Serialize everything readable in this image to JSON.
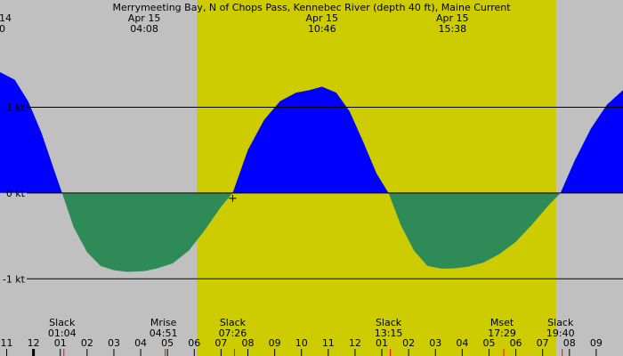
{
  "title": "Merrymeeting Bay, N of Chops Pass, Kennebec River (depth 40 ft), Maine Current",
  "top_left": {
    "date": "14",
    "time": "0"
  },
  "top_events": [
    {
      "date": "Apr 15",
      "time": "04:08",
      "hour": 28.133
    },
    {
      "date": "Apr 15",
      "time": "10:46",
      "hour": 34.767
    },
    {
      "date": "Apr 15",
      "time": "15:38",
      "hour": 39.633
    }
  ],
  "bottom_events": [
    {
      "label": "Slack",
      "time": "01:04",
      "hour": 25.067
    },
    {
      "label": "Mrise",
      "time": "04:51",
      "hour": 28.85
    },
    {
      "label": "Slack",
      "time": "07:26",
      "hour": 31.433
    },
    {
      "label": "Slack",
      "time": "13:15",
      "hour": 37.25
    },
    {
      "label": "Mset",
      "time": "17:29",
      "hour": 41.483
    },
    {
      "label": "Slack",
      "time": "19:40",
      "hour": 43.667
    }
  ],
  "colors": {
    "background": "#c0c0c0",
    "daylight": "#cccc00",
    "flood": "#0000ff",
    "ebb": "#2e8b57",
    "line": "#000000",
    "marker_red": "#ff0000"
  },
  "chart_data": {
    "type": "area",
    "title": "Merrymeeting Bay, N of Chops Pass, Kennebec River (depth 40 ft), Maine Current",
    "xlabel": "",
    "ylabel": "",
    "x_unit": "hour (Apr 14 11:00 to Apr 16 09:30)",
    "xlim": [
      22.75,
      46.0
    ],
    "ylim": [
      -1.9,
      2.25
    ],
    "y_ticks": [
      {
        "value": 1,
        "label": "1 kt"
      },
      {
        "value": 0,
        "label": "0 kt"
      },
      {
        "value": -1,
        "label": "-1 kt"
      }
    ],
    "x_tick_labels": [
      "11",
      "12",
      "01",
      "02",
      "03",
      "04",
      "05",
      "06",
      "07",
      "08",
      "09",
      "10",
      "11",
      "12",
      "01",
      "02",
      "03",
      "04",
      "05",
      "06",
      "07",
      "08",
      "09"
    ],
    "x_tick_hours": [
      23,
      24,
      25,
      26,
      27,
      28,
      29,
      30,
      31,
      32,
      33,
      34,
      35,
      36,
      37,
      38,
      39,
      40,
      41,
      42,
      43,
      44,
      45
    ],
    "daylight": {
      "start": 30.1,
      "end": 43.5
    },
    "series": [
      {
        "x": [
          22.75,
          23.3,
          23.8,
          24.3,
          24.8,
          25.067,
          25.5,
          26.0,
          26.5,
          27.0,
          27.5,
          28.133,
          28.6,
          29.2,
          29.8,
          30.4,
          31.0,
          31.433,
          32.0,
          32.6,
          33.2,
          33.8,
          34.3,
          34.767,
          35.3,
          35.8,
          36.3,
          36.8,
          37.25,
          37.7,
          38.2,
          38.7,
          39.2,
          39.633,
          40.2,
          40.8,
          41.4,
          42.0,
          42.6,
          43.2,
          43.667,
          44.2,
          44.8,
          45.4,
          46.0
        ],
        "y": [
          1.41,
          1.32,
          1.07,
          0.7,
          0.24,
          0.0,
          -0.4,
          -0.69,
          -0.85,
          -0.9,
          -0.92,
          -0.91,
          -0.88,
          -0.82,
          -0.67,
          -0.43,
          -0.16,
          0.0,
          0.5,
          0.85,
          1.07,
          1.17,
          1.2,
          1.24,
          1.17,
          0.95,
          0.6,
          0.23,
          0.0,
          -0.37,
          -0.67,
          -0.85,
          -0.88,
          -0.88,
          -0.86,
          -0.81,
          -0.71,
          -0.57,
          -0.37,
          -0.15,
          0.0,
          0.38,
          0.75,
          1.03,
          1.2
        ]
      }
    ],
    "markers": [
      {
        "hour": 31.433,
        "value": 0
      }
    ]
  }
}
